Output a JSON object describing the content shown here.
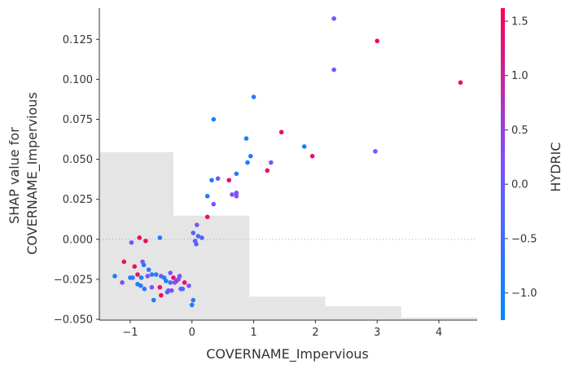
{
  "chart_data": {
    "type": "scatter",
    "title": "",
    "xlabel": "COVERNAME_Impervious",
    "ylabel_lines": [
      "SHAP value for",
      "COVERNAME_Impervious"
    ],
    "xlim": [
      -1.5,
      4.62
    ],
    "ylim": [
      -0.0505,
      0.1445
    ],
    "x_ticks": [
      -1,
      0,
      1,
      2,
      3,
      4
    ],
    "y_ticks": [
      -0.05,
      -0.025,
      0.0,
      0.025,
      0.05,
      0.075,
      0.1,
      0.125
    ],
    "y_tick_labels": [
      "−0.050",
      "−0.025",
      "0.000",
      "0.025",
      "0.050",
      "0.075",
      "0.100",
      "0.125"
    ],
    "x_tick_labels": [
      "−1",
      "0",
      "1",
      "2",
      "3",
      "4"
    ],
    "zero_line": true,
    "histogram": {
      "color": "#e5e5e5",
      "bins": [
        {
          "x0": -1.5,
          "x1": -0.3,
          "top": 0.0545
        },
        {
          "x0": -0.3,
          "x1": 0.93,
          "top": 0.0148
        },
        {
          "x0": 0.93,
          "x1": 2.16,
          "top": -0.0358
        },
        {
          "x0": 2.16,
          "x1": 3.39,
          "top": -0.0418
        },
        {
          "x0": 3.39,
          "x1": 4.62,
          "top": -0.0488
        }
      ]
    },
    "colorbar": {
      "label": "HYDRIC",
      "range": [
        -1.25,
        1.62
      ],
      "ticks": [
        -1.0,
        -0.5,
        0.0,
        0.5,
        1.0,
        1.5
      ],
      "tick_labels": [
        "−1.0",
        "−0.5",
        "0.0",
        "0.5",
        "1.0",
        "1.5"
      ],
      "colors": [
        "#008afb",
        "#7c52ff",
        "#ff0052"
      ]
    },
    "points": [
      {
        "x": 2.3,
        "y": 0.138,
        "c": 0.2
      },
      {
        "x": 3.0,
        "y": 0.124,
        "c": 1.5
      },
      {
        "x": 2.3,
        "y": 0.106,
        "c": 0.2
      },
      {
        "x": 4.35,
        "y": 0.098,
        "c": 1.5
      },
      {
        "x": 1.0,
        "y": 0.089,
        "c": -0.8
      },
      {
        "x": 0.35,
        "y": 0.075,
        "c": -1.0
      },
      {
        "x": 1.45,
        "y": 0.067,
        "c": 1.4
      },
      {
        "x": 0.88,
        "y": 0.063,
        "c": -0.9
      },
      {
        "x": 1.82,
        "y": 0.058,
        "c": -0.9
      },
      {
        "x": 2.97,
        "y": 0.055,
        "c": 0.2
      },
      {
        "x": 1.95,
        "y": 0.052,
        "c": 1.4
      },
      {
        "x": 0.95,
        "y": 0.052,
        "c": -0.8
      },
      {
        "x": 0.9,
        "y": 0.048,
        "c": -0.9
      },
      {
        "x": 1.28,
        "y": 0.048,
        "c": 0.2
      },
      {
        "x": 1.22,
        "y": 0.043,
        "c": 1.4
      },
      {
        "x": 0.72,
        "y": 0.041,
        "c": -0.9
      },
      {
        "x": 0.42,
        "y": 0.038,
        "c": 0.0
      },
      {
        "x": 0.6,
        "y": 0.037,
        "c": 1.4
      },
      {
        "x": 0.32,
        "y": 0.037,
        "c": -1.0
      },
      {
        "x": 0.65,
        "y": 0.028,
        "c": 0.2
      },
      {
        "x": 0.72,
        "y": 0.027,
        "c": 0.2
      },
      {
        "x": 0.72,
        "y": 0.029,
        "c": 0.2
      },
      {
        "x": 0.25,
        "y": 0.027,
        "c": -0.9
      },
      {
        "x": 0.35,
        "y": 0.022,
        "c": 0.2
      },
      {
        "x": 0.25,
        "y": 0.014,
        "c": 1.4
      },
      {
        "x": 0.08,
        "y": 0.009,
        "c": 0.0
      },
      {
        "x": 0.02,
        "y": 0.004,
        "c": -0.2
      },
      {
        "x": 0.1,
        "y": 0.002,
        "c": -0.5
      },
      {
        "x": 0.16,
        "y": 0.001,
        "c": -0.2
      },
      {
        "x": -0.52,
        "y": 0.001,
        "c": -0.9
      },
      {
        "x": 0.05,
        "y": -0.001,
        "c": 0.2
      },
      {
        "x": 0.07,
        "y": -0.003,
        "c": -0.5
      },
      {
        "x": -0.85,
        "y": 0.001,
        "c": 1.4
      },
      {
        "x": -0.98,
        "y": -0.002,
        "c": 0.1
      },
      {
        "x": -0.75,
        "y": -0.001,
        "c": 1.4
      },
      {
        "x": -1.1,
        "y": -0.014,
        "c": 1.4
      },
      {
        "x": -0.8,
        "y": -0.014,
        "c": 0.2
      },
      {
        "x": -0.78,
        "y": -0.016,
        "c": -0.8
      },
      {
        "x": -0.93,
        "y": -0.017,
        "c": 1.4
      },
      {
        "x": -0.7,
        "y": -0.019,
        "c": -0.8
      },
      {
        "x": -0.35,
        "y": -0.021,
        "c": 0.2
      },
      {
        "x": -0.72,
        "y": -0.023,
        "c": 0.2
      },
      {
        "x": -0.88,
        "y": -0.022,
        "c": 1.4
      },
      {
        "x": -0.65,
        "y": -0.022,
        "c": -0.8
      },
      {
        "x": -0.5,
        "y": -0.023,
        "c": 0.2
      },
      {
        "x": -0.45,
        "y": -0.024,
        "c": -0.9
      },
      {
        "x": -0.3,
        "y": -0.024,
        "c": 1.4
      },
      {
        "x": -0.2,
        "y": -0.023,
        "c": 0.2
      },
      {
        "x": -1.25,
        "y": -0.023,
        "c": -0.9
      },
      {
        "x": -1.0,
        "y": -0.024,
        "c": -0.9
      },
      {
        "x": -0.96,
        "y": -0.024,
        "c": -0.8
      },
      {
        "x": -0.82,
        "y": -0.024,
        "c": -0.9
      },
      {
        "x": -0.58,
        "y": -0.022,
        "c": -0.9
      },
      {
        "x": -0.42,
        "y": -0.026,
        "c": -0.9
      },
      {
        "x": -0.25,
        "y": -0.026,
        "c": 1.4
      },
      {
        "x": -0.22,
        "y": -0.025,
        "c": 0.2
      },
      {
        "x": -0.12,
        "y": -0.027,
        "c": 1.4
      },
      {
        "x": -0.35,
        "y": -0.027,
        "c": -0.5
      },
      {
        "x": -0.28,
        "y": -0.027,
        "c": 0.2
      },
      {
        "x": -1.13,
        "y": -0.027,
        "c": 0.2
      },
      {
        "x": -0.88,
        "y": -0.028,
        "c": -0.9
      },
      {
        "x": -0.83,
        "y": -0.029,
        "c": -0.8
      },
      {
        "x": -0.77,
        "y": -0.031,
        "c": -0.8
      },
      {
        "x": -0.65,
        "y": -0.03,
        "c": 0.2
      },
      {
        "x": -0.52,
        "y": -0.03,
        "c": 1.4
      },
      {
        "x": -0.05,
        "y": -0.029,
        "c": 0.2
      },
      {
        "x": -0.18,
        "y": -0.031,
        "c": 0.2
      },
      {
        "x": -0.15,
        "y": -0.031,
        "c": -0.5
      },
      {
        "x": -0.4,
        "y": -0.033,
        "c": -0.8
      },
      {
        "x": -0.38,
        "y": -0.032,
        "c": 0.2
      },
      {
        "x": -0.33,
        "y": -0.032,
        "c": 0.2
      },
      {
        "x": -0.5,
        "y": -0.035,
        "c": 1.4
      },
      {
        "x": -0.62,
        "y": -0.038,
        "c": -0.9
      },
      {
        "x": 0.02,
        "y": -0.038,
        "c": -0.9
      },
      {
        "x": 0.0,
        "y": -0.041,
        "c": -0.9
      }
    ]
  }
}
